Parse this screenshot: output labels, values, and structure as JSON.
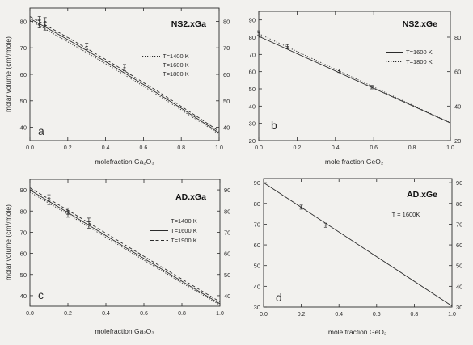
{
  "chart_data": [
    {
      "type": "line",
      "panel_label": "a",
      "title": "NS2.xGa",
      "xlabel": "molefraction Ga₂O₃",
      "ylabel": "molar volume (cm³/mole)",
      "xlim": [
        0,
        1
      ],
      "ylim": [
        35,
        85
      ],
      "xticks": [
        0.0,
        0.2,
        0.4,
        0.6,
        0.8,
        1.0
      ],
      "xtick_labels": [
        "0.0",
        "0.2",
        "0.4",
        "0.6",
        "0.8",
        "1.0"
      ],
      "yticks": [
        40,
        50,
        60,
        70,
        80
      ],
      "ytick_labels": [
        "40",
        "50",
        "60",
        "70",
        "80"
      ],
      "right_yticks": [
        40,
        50,
        60,
        70,
        80
      ],
      "right_ytick_labels": [
        "40",
        "50",
        "60",
        "70",
        "80"
      ],
      "legend_position": "upper-right",
      "grid": false,
      "series": [
        {
          "name": "T=1400 K",
          "style": "dotted",
          "x": [
            0,
            0.05,
            0.1,
            0.2,
            0.3,
            0.4,
            0.5,
            0.6,
            0.7,
            0.8,
            0.9,
            1.0
          ],
          "y": [
            80.3,
            78.4,
            76.3,
            72.3,
            68.2,
            64.0,
            59.8,
            55.5,
            51.1,
            46.6,
            42.0,
            37.4
          ]
        },
        {
          "name": "T=1600 K",
          "style": "solid",
          "x": [
            0,
            0.05,
            0.1,
            0.2,
            0.3,
            0.4,
            0.5,
            0.6,
            0.7,
            0.8,
            0.9,
            1.0
          ],
          "y": [
            81.0,
            79.1,
            77.1,
            73.1,
            69.0,
            64.8,
            60.5,
            56.2,
            51.7,
            47.2,
            42.6,
            37.9
          ]
        },
        {
          "name": "T=1800 K",
          "style": "dashed",
          "x": [
            0,
            0.05,
            0.1,
            0.2,
            0.3,
            0.4,
            0.5,
            0.6,
            0.7,
            0.8,
            0.9,
            1.0
          ],
          "y": [
            81.8,
            79.9,
            77.9,
            73.9,
            69.8,
            65.6,
            61.3,
            56.9,
            52.5,
            47.9,
            43.3,
            38.5
          ]
        }
      ],
      "points": [
        {
          "x": 0.05,
          "y": 80.3,
          "err": 1.5
        },
        {
          "x": 0.05,
          "y": 79.0,
          "err": 1.5
        },
        {
          "x": 0.08,
          "y": 79.9,
          "err": 1.5
        },
        {
          "x": 0.08,
          "y": 78.2,
          "err": 1.5
        },
        {
          "x": 0.3,
          "y": 70.5,
          "err": 1.2
        },
        {
          "x": 0.5,
          "y": 62.5,
          "err": 1.2
        }
      ]
    },
    {
      "type": "line",
      "panel_label": "b",
      "title": "NS2.xGe",
      "xlabel": "mole fraction GeO₂",
      "ylabel": "",
      "xlim": [
        0,
        1
      ],
      "ylim": [
        20,
        95
      ],
      "xticks": [
        0.0,
        0.2,
        0.4,
        0.6,
        0.8,
        1.0
      ],
      "xtick_labels": [
        "0.0",
        "0.2",
        "0.4",
        "0.6",
        "0.8",
        "1.0"
      ],
      "yticks": [
        20,
        30,
        40,
        50,
        60,
        70,
        80,
        90
      ],
      "ytick_labels": [
        "20",
        "30",
        "40",
        "50",
        "60",
        "70",
        "80",
        "90"
      ],
      "right_yticks": [
        20,
        40,
        60,
        80
      ],
      "right_ytick_labels": [
        "20",
        "40",
        "60",
        "80"
      ],
      "legend_position": "upper-right",
      "grid": false,
      "series": [
        {
          "name": "T=1600 K",
          "style": "solid",
          "x": [
            0,
            1
          ],
          "y": [
            80.5,
            30.2
          ]
        },
        {
          "name": "T=1800 K",
          "style": "dotted",
          "x": [
            0,
            1
          ],
          "y": [
            82.0,
            30.4
          ]
        }
      ],
      "points": [
        {
          "x": 0.0,
          "y": 82.5,
          "err": 1.2
        },
        {
          "x": 0.15,
          "y": 74.5,
          "err": 1.2
        },
        {
          "x": 0.42,
          "y": 60.5,
          "err": 1.0
        },
        {
          "x": 0.59,
          "y": 51.0,
          "err": 1.0
        }
      ]
    },
    {
      "type": "line",
      "panel_label": "c",
      "title": "AD.xGa",
      "xlabel": "molefraction Ga₂O₃",
      "ylabel": "molar volume (cm³/mole)",
      "xlim": [
        0,
        1
      ],
      "ylim": [
        35,
        95
      ],
      "xticks": [
        0.0,
        0.2,
        0.4,
        0.6,
        0.8,
        1.0
      ],
      "xtick_labels": [
        "0.0",
        "0.2",
        "0.4",
        "0.6",
        "0.8",
        "1.0"
      ],
      "yticks": [
        40,
        50,
        60,
        70,
        80,
        90
      ],
      "ytick_labels": [
        "40",
        "50",
        "60",
        "70",
        "80",
        "90"
      ],
      "right_yticks": [
        40,
        50,
        60,
        70,
        80,
        90
      ],
      "right_ytick_labels": [
        "40",
        "50",
        "60",
        "70",
        "80",
        "90"
      ],
      "legend_position": "center-right",
      "grid": false,
      "series": [
        {
          "name": "T=1400 K",
          "style": "dotted",
          "x": [
            0,
            0.2,
            0.4,
            0.6,
            0.8,
            1.0
          ],
          "y": [
            89.0,
            78.5,
            67.6,
            56.8,
            46.1,
            35.6
          ]
        },
        {
          "name": "T=1600 K",
          "style": "solid",
          "x": [
            0,
            0.2,
            0.4,
            0.6,
            0.8,
            1.0
          ],
          "y": [
            89.9,
            79.3,
            68.4,
            57.6,
            46.8,
            36.2
          ]
        },
        {
          "name": "T=1900 K",
          "style": "dashed",
          "x": [
            0,
            0.2,
            0.4,
            0.6,
            0.8,
            1.0
          ],
          "y": [
            91.0,
            80.4,
            69.5,
            58.6,
            47.8,
            37.1
          ]
        }
      ],
      "points": [
        {
          "x": 0.1,
          "y": 86.2,
          "err": 1.5
        },
        {
          "x": 0.1,
          "y": 84.6,
          "err": 1.5
        },
        {
          "x": 0.2,
          "y": 80.0,
          "err": 1.5
        },
        {
          "x": 0.2,
          "y": 78.6,
          "err": 1.5
        },
        {
          "x": 0.31,
          "y": 75.2,
          "err": 1.5
        },
        {
          "x": 0.31,
          "y": 73.4,
          "err": 1.5
        }
      ]
    },
    {
      "type": "line",
      "panel_label": "d",
      "title": "AD.xGe",
      "annotation": "T = 1600K",
      "xlabel": "mole fraction GeO₂",
      "ylabel": "",
      "xlim": [
        0,
        1
      ],
      "ylim": [
        30,
        92
      ],
      "xticks": [
        0.0,
        0.2,
        0.4,
        0.6,
        0.8,
        1.0
      ],
      "xtick_labels": [
        "0.0",
        "0.2",
        "0.4",
        "0.6",
        "0.8",
        "1.0"
      ],
      "yticks": [
        30,
        40,
        50,
        60,
        70,
        80,
        90
      ],
      "ytick_labels": [
        "30",
        "40",
        "50",
        "60",
        "70",
        "80",
        "90"
      ],
      "right_yticks": [
        30,
        40,
        50,
        60,
        70,
        80,
        90
      ],
      "right_ytick_labels": [
        "30",
        "40",
        "50",
        "60",
        "70",
        "80",
        "90"
      ],
      "legend_position": "none",
      "grid": false,
      "series": [
        {
          "name": "",
          "style": "solid",
          "x": [
            0,
            1
          ],
          "y": [
            90.0,
            30.5
          ]
        }
      ],
      "points": [
        {
          "x": 0.2,
          "y": 78.2,
          "err": 1.0
        },
        {
          "x": 0.33,
          "y": 69.5,
          "err": 1.0
        }
      ]
    }
  ]
}
